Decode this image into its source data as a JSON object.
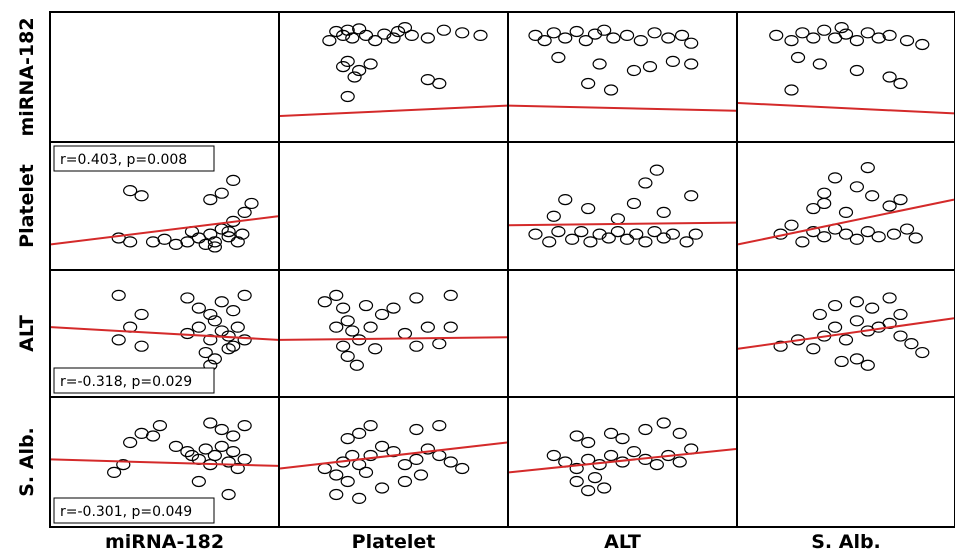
{
  "chart_data": {
    "type": "scatter",
    "matrix": true,
    "variables": [
      "miRNA-182",
      "Platelet",
      "ALT",
      "S. Alb."
    ],
    "marker": "open-circle",
    "fit_line_color": "#d42a2a",
    "point_color": "#000000",
    "diagonal_empty": true,
    "cells": [
      {
        "row": 0,
        "col": 1,
        "fit": [
          0.2,
          0.28
        ],
        "points": [
          [
            0.22,
            0.78
          ],
          [
            0.25,
            0.85
          ],
          [
            0.28,
            0.82
          ],
          [
            0.3,
            0.86
          ],
          [
            0.32,
            0.8
          ],
          [
            0.35,
            0.87
          ],
          [
            0.38,
            0.82
          ],
          [
            0.42,
            0.78
          ],
          [
            0.46,
            0.83
          ],
          [
            0.52,
            0.85
          ],
          [
            0.58,
            0.82
          ],
          [
            0.65,
            0.8
          ],
          [
            0.72,
            0.86
          ],
          [
            0.8,
            0.84
          ],
          [
            0.88,
            0.82
          ],
          [
            0.3,
            0.62
          ],
          [
            0.35,
            0.55
          ],
          [
            0.28,
            0.58
          ],
          [
            0.33,
            0.5
          ],
          [
            0.4,
            0.6
          ],
          [
            0.65,
            0.48
          ],
          [
            0.7,
            0.45
          ],
          [
            0.3,
            0.35
          ],
          [
            0.5,
            0.8
          ],
          [
            0.55,
            0.88
          ]
        ]
      },
      {
        "row": 0,
        "col": 2,
        "fit": [
          0.28,
          0.24
        ],
        "points": [
          [
            0.12,
            0.82
          ],
          [
            0.16,
            0.78
          ],
          [
            0.2,
            0.84
          ],
          [
            0.25,
            0.8
          ],
          [
            0.3,
            0.85
          ],
          [
            0.34,
            0.78
          ],
          [
            0.38,
            0.83
          ],
          [
            0.42,
            0.86
          ],
          [
            0.46,
            0.8
          ],
          [
            0.52,
            0.82
          ],
          [
            0.58,
            0.78
          ],
          [
            0.64,
            0.84
          ],
          [
            0.7,
            0.8
          ],
          [
            0.76,
            0.82
          ],
          [
            0.8,
            0.76
          ],
          [
            0.22,
            0.65
          ],
          [
            0.4,
            0.6
          ],
          [
            0.55,
            0.55
          ],
          [
            0.62,
            0.58
          ],
          [
            0.72,
            0.62
          ],
          [
            0.35,
            0.45
          ],
          [
            0.45,
            0.4
          ],
          [
            0.8,
            0.6
          ]
        ]
      },
      {
        "row": 0,
        "col": 3,
        "fit": [
          0.3,
          0.22
        ],
        "points": [
          [
            0.18,
            0.82
          ],
          [
            0.25,
            0.78
          ],
          [
            0.3,
            0.84
          ],
          [
            0.35,
            0.8
          ],
          [
            0.4,
            0.86
          ],
          [
            0.45,
            0.8
          ],
          [
            0.5,
            0.83
          ],
          [
            0.55,
            0.78
          ],
          [
            0.6,
            0.84
          ],
          [
            0.65,
            0.8
          ],
          [
            0.7,
            0.82
          ],
          [
            0.78,
            0.78
          ],
          [
            0.28,
            0.65
          ],
          [
            0.38,
            0.6
          ],
          [
            0.55,
            0.55
          ],
          [
            0.7,
            0.5
          ],
          [
            0.75,
            0.45
          ],
          [
            0.25,
            0.4
          ],
          [
            0.48,
            0.88
          ],
          [
            0.85,
            0.75
          ]
        ]
      },
      {
        "row": 1,
        "col": 0,
        "fit": [
          0.2,
          0.42
        ],
        "points": [
          [
            0.35,
            0.62
          ],
          [
            0.4,
            0.58
          ],
          [
            0.3,
            0.25
          ],
          [
            0.35,
            0.22
          ],
          [
            0.45,
            0.22
          ],
          [
            0.5,
            0.24
          ],
          [
            0.55,
            0.2
          ],
          [
            0.6,
            0.22
          ],
          [
            0.65,
            0.25
          ],
          [
            0.68,
            0.2
          ],
          [
            0.7,
            0.28
          ],
          [
            0.72,
            0.22
          ],
          [
            0.75,
            0.32
          ],
          [
            0.78,
            0.26
          ],
          [
            0.8,
            0.38
          ],
          [
            0.82,
            0.22
          ],
          [
            0.85,
            0.45
          ],
          [
            0.75,
            0.6
          ],
          [
            0.8,
            0.7
          ],
          [
            0.7,
            0.55
          ],
          [
            0.72,
            0.18
          ],
          [
            0.78,
            0.3
          ],
          [
            0.84,
            0.28
          ],
          [
            0.62,
            0.3
          ],
          [
            0.88,
            0.52
          ]
        ]
      },
      {
        "row": 1,
        "col": 2,
        "fit": [
          0.35,
          0.37
        ],
        "points": [
          [
            0.12,
            0.28
          ],
          [
            0.18,
            0.22
          ],
          [
            0.22,
            0.3
          ],
          [
            0.28,
            0.24
          ],
          [
            0.32,
            0.3
          ],
          [
            0.36,
            0.22
          ],
          [
            0.4,
            0.28
          ],
          [
            0.44,
            0.25
          ],
          [
            0.48,
            0.3
          ],
          [
            0.52,
            0.24
          ],
          [
            0.56,
            0.28
          ],
          [
            0.6,
            0.22
          ],
          [
            0.64,
            0.3
          ],
          [
            0.68,
            0.25
          ],
          [
            0.72,
            0.28
          ],
          [
            0.78,
            0.22
          ],
          [
            0.82,
            0.28
          ],
          [
            0.2,
            0.42
          ],
          [
            0.35,
            0.48
          ],
          [
            0.55,
            0.52
          ],
          [
            0.68,
            0.45
          ],
          [
            0.6,
            0.68
          ],
          [
            0.65,
            0.78
          ],
          [
            0.8,
            0.58
          ],
          [
            0.25,
            0.55
          ],
          [
            0.48,
            0.4
          ]
        ]
      },
      {
        "row": 1,
        "col": 3,
        "fit": [
          0.2,
          0.55
        ],
        "points": [
          [
            0.2,
            0.28
          ],
          [
            0.25,
            0.35
          ],
          [
            0.3,
            0.22
          ],
          [
            0.35,
            0.3
          ],
          [
            0.4,
            0.26
          ],
          [
            0.45,
            0.32
          ],
          [
            0.5,
            0.28
          ],
          [
            0.55,
            0.24
          ],
          [
            0.6,
            0.3
          ],
          [
            0.65,
            0.26
          ],
          [
            0.72,
            0.28
          ],
          [
            0.78,
            0.32
          ],
          [
            0.82,
            0.25
          ],
          [
            0.35,
            0.48
          ],
          [
            0.4,
            0.6
          ],
          [
            0.45,
            0.72
          ],
          [
            0.55,
            0.65
          ],
          [
            0.62,
            0.58
          ],
          [
            0.7,
            0.5
          ],
          [
            0.75,
            0.55
          ],
          [
            0.4,
            0.52
          ],
          [
            0.6,
            0.8
          ],
          [
            0.5,
            0.45
          ]
        ]
      },
      {
        "row": 2,
        "col": 0,
        "fit": [
          0.55,
          0.45
        ],
        "points": [
          [
            0.3,
            0.8
          ],
          [
            0.4,
            0.65
          ],
          [
            0.35,
            0.55
          ],
          [
            0.3,
            0.45
          ],
          [
            0.4,
            0.4
          ],
          [
            0.6,
            0.5
          ],
          [
            0.65,
            0.55
          ],
          [
            0.7,
            0.45
          ],
          [
            0.72,
            0.6
          ],
          [
            0.75,
            0.52
          ],
          [
            0.78,
            0.48
          ],
          [
            0.8,
            0.4
          ],
          [
            0.68,
            0.35
          ],
          [
            0.72,
            0.3
          ],
          [
            0.78,
            0.38
          ],
          [
            0.82,
            0.55
          ],
          [
            0.85,
            0.45
          ],
          [
            0.7,
            0.65
          ],
          [
            0.75,
            0.75
          ],
          [
            0.8,
            0.68
          ],
          [
            0.85,
            0.8
          ],
          [
            0.6,
            0.78
          ],
          [
            0.65,
            0.7
          ],
          [
            0.7,
            0.25
          ]
        ]
      },
      {
        "row": 2,
        "col": 1,
        "fit": [
          0.45,
          0.47
        ],
        "points": [
          [
            0.2,
            0.75
          ],
          [
            0.25,
            0.8
          ],
          [
            0.28,
            0.7
          ],
          [
            0.3,
            0.6
          ],
          [
            0.32,
            0.52
          ],
          [
            0.35,
            0.45
          ],
          [
            0.28,
            0.4
          ],
          [
            0.3,
            0.32
          ],
          [
            0.34,
            0.25
          ],
          [
            0.4,
            0.55
          ],
          [
            0.45,
            0.65
          ],
          [
            0.5,
            0.7
          ],
          [
            0.55,
            0.5
          ],
          [
            0.6,
            0.4
          ],
          [
            0.65,
            0.55
          ],
          [
            0.7,
            0.42
          ],
          [
            0.75,
            0.55
          ],
          [
            0.25,
            0.55
          ],
          [
            0.38,
            0.72
          ],
          [
            0.42,
            0.38
          ],
          [
            0.6,
            0.78
          ],
          [
            0.75,
            0.8
          ]
        ]
      },
      {
        "row": 2,
        "col": 3,
        "fit": [
          0.38,
          0.62
        ],
        "points": [
          [
            0.2,
            0.4
          ],
          [
            0.28,
            0.45
          ],
          [
            0.35,
            0.38
          ],
          [
            0.4,
            0.48
          ],
          [
            0.45,
            0.55
          ],
          [
            0.5,
            0.45
          ],
          [
            0.55,
            0.6
          ],
          [
            0.6,
            0.52
          ],
          [
            0.65,
            0.55
          ],
          [
            0.7,
            0.58
          ],
          [
            0.75,
            0.48
          ],
          [
            0.8,
            0.42
          ],
          [
            0.38,
            0.65
          ],
          [
            0.45,
            0.72
          ],
          [
            0.55,
            0.75
          ],
          [
            0.62,
            0.7
          ],
          [
            0.7,
            0.78
          ],
          [
            0.55,
            0.3
          ],
          [
            0.6,
            0.25
          ],
          [
            0.48,
            0.28
          ],
          [
            0.75,
            0.65
          ],
          [
            0.85,
            0.35
          ]
        ]
      },
      {
        "row": 3,
        "col": 0,
        "fit": [
          0.52,
          0.47
        ],
        "points": [
          [
            0.25,
            0.18
          ],
          [
            0.28,
            0.42
          ],
          [
            0.32,
            0.48
          ],
          [
            0.35,
            0.65
          ],
          [
            0.4,
            0.72
          ],
          [
            0.45,
            0.7
          ],
          [
            0.48,
            0.78
          ],
          [
            0.55,
            0.62
          ],
          [
            0.6,
            0.58
          ],
          [
            0.62,
            0.55
          ],
          [
            0.65,
            0.52
          ],
          [
            0.68,
            0.6
          ],
          [
            0.7,
            0.48
          ],
          [
            0.72,
            0.55
          ],
          [
            0.75,
            0.62
          ],
          [
            0.78,
            0.5
          ],
          [
            0.8,
            0.58
          ],
          [
            0.82,
            0.45
          ],
          [
            0.85,
            0.52
          ],
          [
            0.7,
            0.8
          ],
          [
            0.75,
            0.75
          ],
          [
            0.8,
            0.7
          ],
          [
            0.85,
            0.78
          ],
          [
            0.65,
            0.35
          ],
          [
            0.78,
            0.25
          ]
        ]
      },
      {
        "row": 3,
        "col": 1,
        "fit": [
          0.45,
          0.65
        ],
        "points": [
          [
            0.2,
            0.45
          ],
          [
            0.25,
            0.4
          ],
          [
            0.28,
            0.5
          ],
          [
            0.3,
            0.35
          ],
          [
            0.32,
            0.55
          ],
          [
            0.35,
            0.48
          ],
          [
            0.38,
            0.42
          ],
          [
            0.4,
            0.55
          ],
          [
            0.45,
            0.62
          ],
          [
            0.5,
            0.58
          ],
          [
            0.55,
            0.48
          ],
          [
            0.6,
            0.52
          ],
          [
            0.65,
            0.6
          ],
          [
            0.7,
            0.55
          ],
          [
            0.75,
            0.5
          ],
          [
            0.3,
            0.68
          ],
          [
            0.35,
            0.72
          ],
          [
            0.4,
            0.78
          ],
          [
            0.6,
            0.75
          ],
          [
            0.7,
            0.78
          ],
          [
            0.25,
            0.25
          ],
          [
            0.35,
            0.22
          ],
          [
            0.45,
            0.3
          ],
          [
            0.55,
            0.35
          ],
          [
            0.62,
            0.4
          ],
          [
            0.8,
            0.45
          ]
        ]
      },
      {
        "row": 3,
        "col": 2,
        "fit": [
          0.42,
          0.6
        ],
        "points": [
          [
            0.2,
            0.55
          ],
          [
            0.25,
            0.5
          ],
          [
            0.3,
            0.45
          ],
          [
            0.35,
            0.52
          ],
          [
            0.4,
            0.48
          ],
          [
            0.45,
            0.55
          ],
          [
            0.5,
            0.5
          ],
          [
            0.55,
            0.58
          ],
          [
            0.6,
            0.52
          ],
          [
            0.65,
            0.48
          ],
          [
            0.7,
            0.55
          ],
          [
            0.75,
            0.5
          ],
          [
            0.8,
            0.6
          ],
          [
            0.3,
            0.7
          ],
          [
            0.35,
            0.65
          ],
          [
            0.45,
            0.72
          ],
          [
            0.5,
            0.68
          ],
          [
            0.6,
            0.75
          ],
          [
            0.68,
            0.8
          ],
          [
            0.75,
            0.72
          ],
          [
            0.3,
            0.35
          ],
          [
            0.35,
            0.28
          ],
          [
            0.42,
            0.3
          ],
          [
            0.38,
            0.38
          ]
        ]
      }
    ]
  },
  "annotations": [
    {
      "row": 1,
      "col": 0,
      "text": "r=0.403, p=0.008",
      "corner": "top-left"
    },
    {
      "row": 2,
      "col": 0,
      "text": "r=-0.318, p=0.029",
      "corner": "bottom-left"
    },
    {
      "row": 3,
      "col": 0,
      "text": "r=-0.301, p=0.049",
      "corner": "bottom-left"
    }
  ]
}
